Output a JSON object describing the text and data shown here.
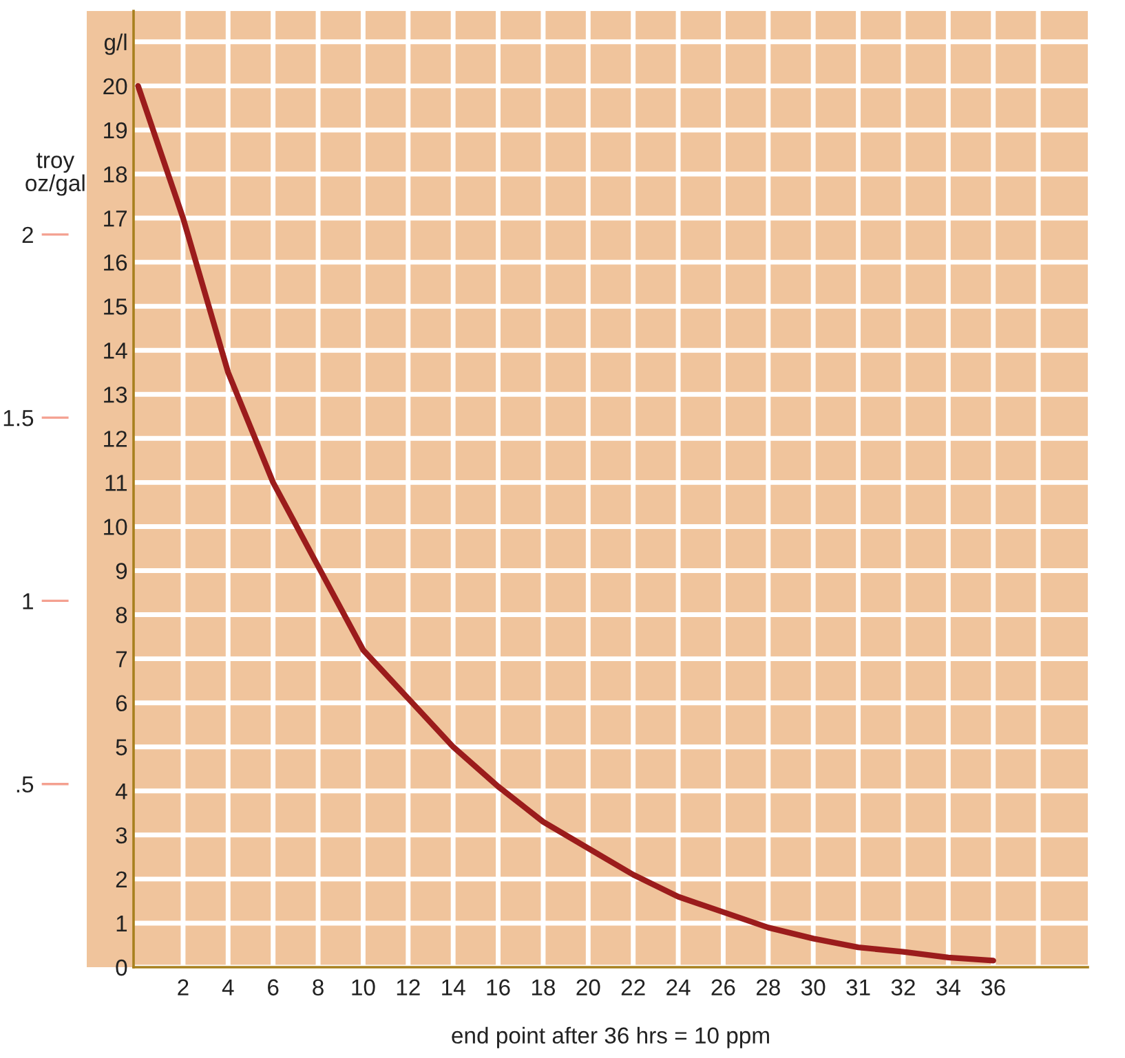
{
  "chart_data": {
    "type": "line",
    "xlabel": "end point after 36 hrs = 10 ppm",
    "y2label": "troy\noz/gal",
    "categories": [
      null,
      "2",
      "4",
      "6",
      "8",
      "10",
      "12",
      "14",
      "16",
      "18",
      "20",
      "22",
      "24",
      "26",
      "28",
      "30",
      "31",
      "32",
      "34",
      "36",
      null
    ],
    "series": [
      {
        "color": "#9b1c1c",
        "values": [
          20,
          17.0,
          13.5,
          11.0,
          9.1,
          7.2,
          6.1,
          5.0,
          4.1,
          3.3,
          2.7,
          2.1,
          1.6,
          1.25,
          0.9,
          0.65,
          0.45,
          0.35,
          0.22,
          0.15,
          null
        ]
      }
    ],
    "ylim": [
      0,
      21.7
    ],
    "yticks": [
      0,
      1,
      2,
      3,
      4,
      5,
      6,
      7,
      8,
      9,
      10,
      11,
      12,
      13,
      14,
      15,
      16,
      17,
      18,
      19,
      20,
      {
        "value": 21,
        "label": "g/l"
      }
    ],
    "y2lim": [
      0,
      2.61
    ],
    "y2ticks": [
      {
        "value": 0.5,
        "label": ".5"
      },
      1,
      1.5,
      2
    ],
    "grid": true
  }
}
